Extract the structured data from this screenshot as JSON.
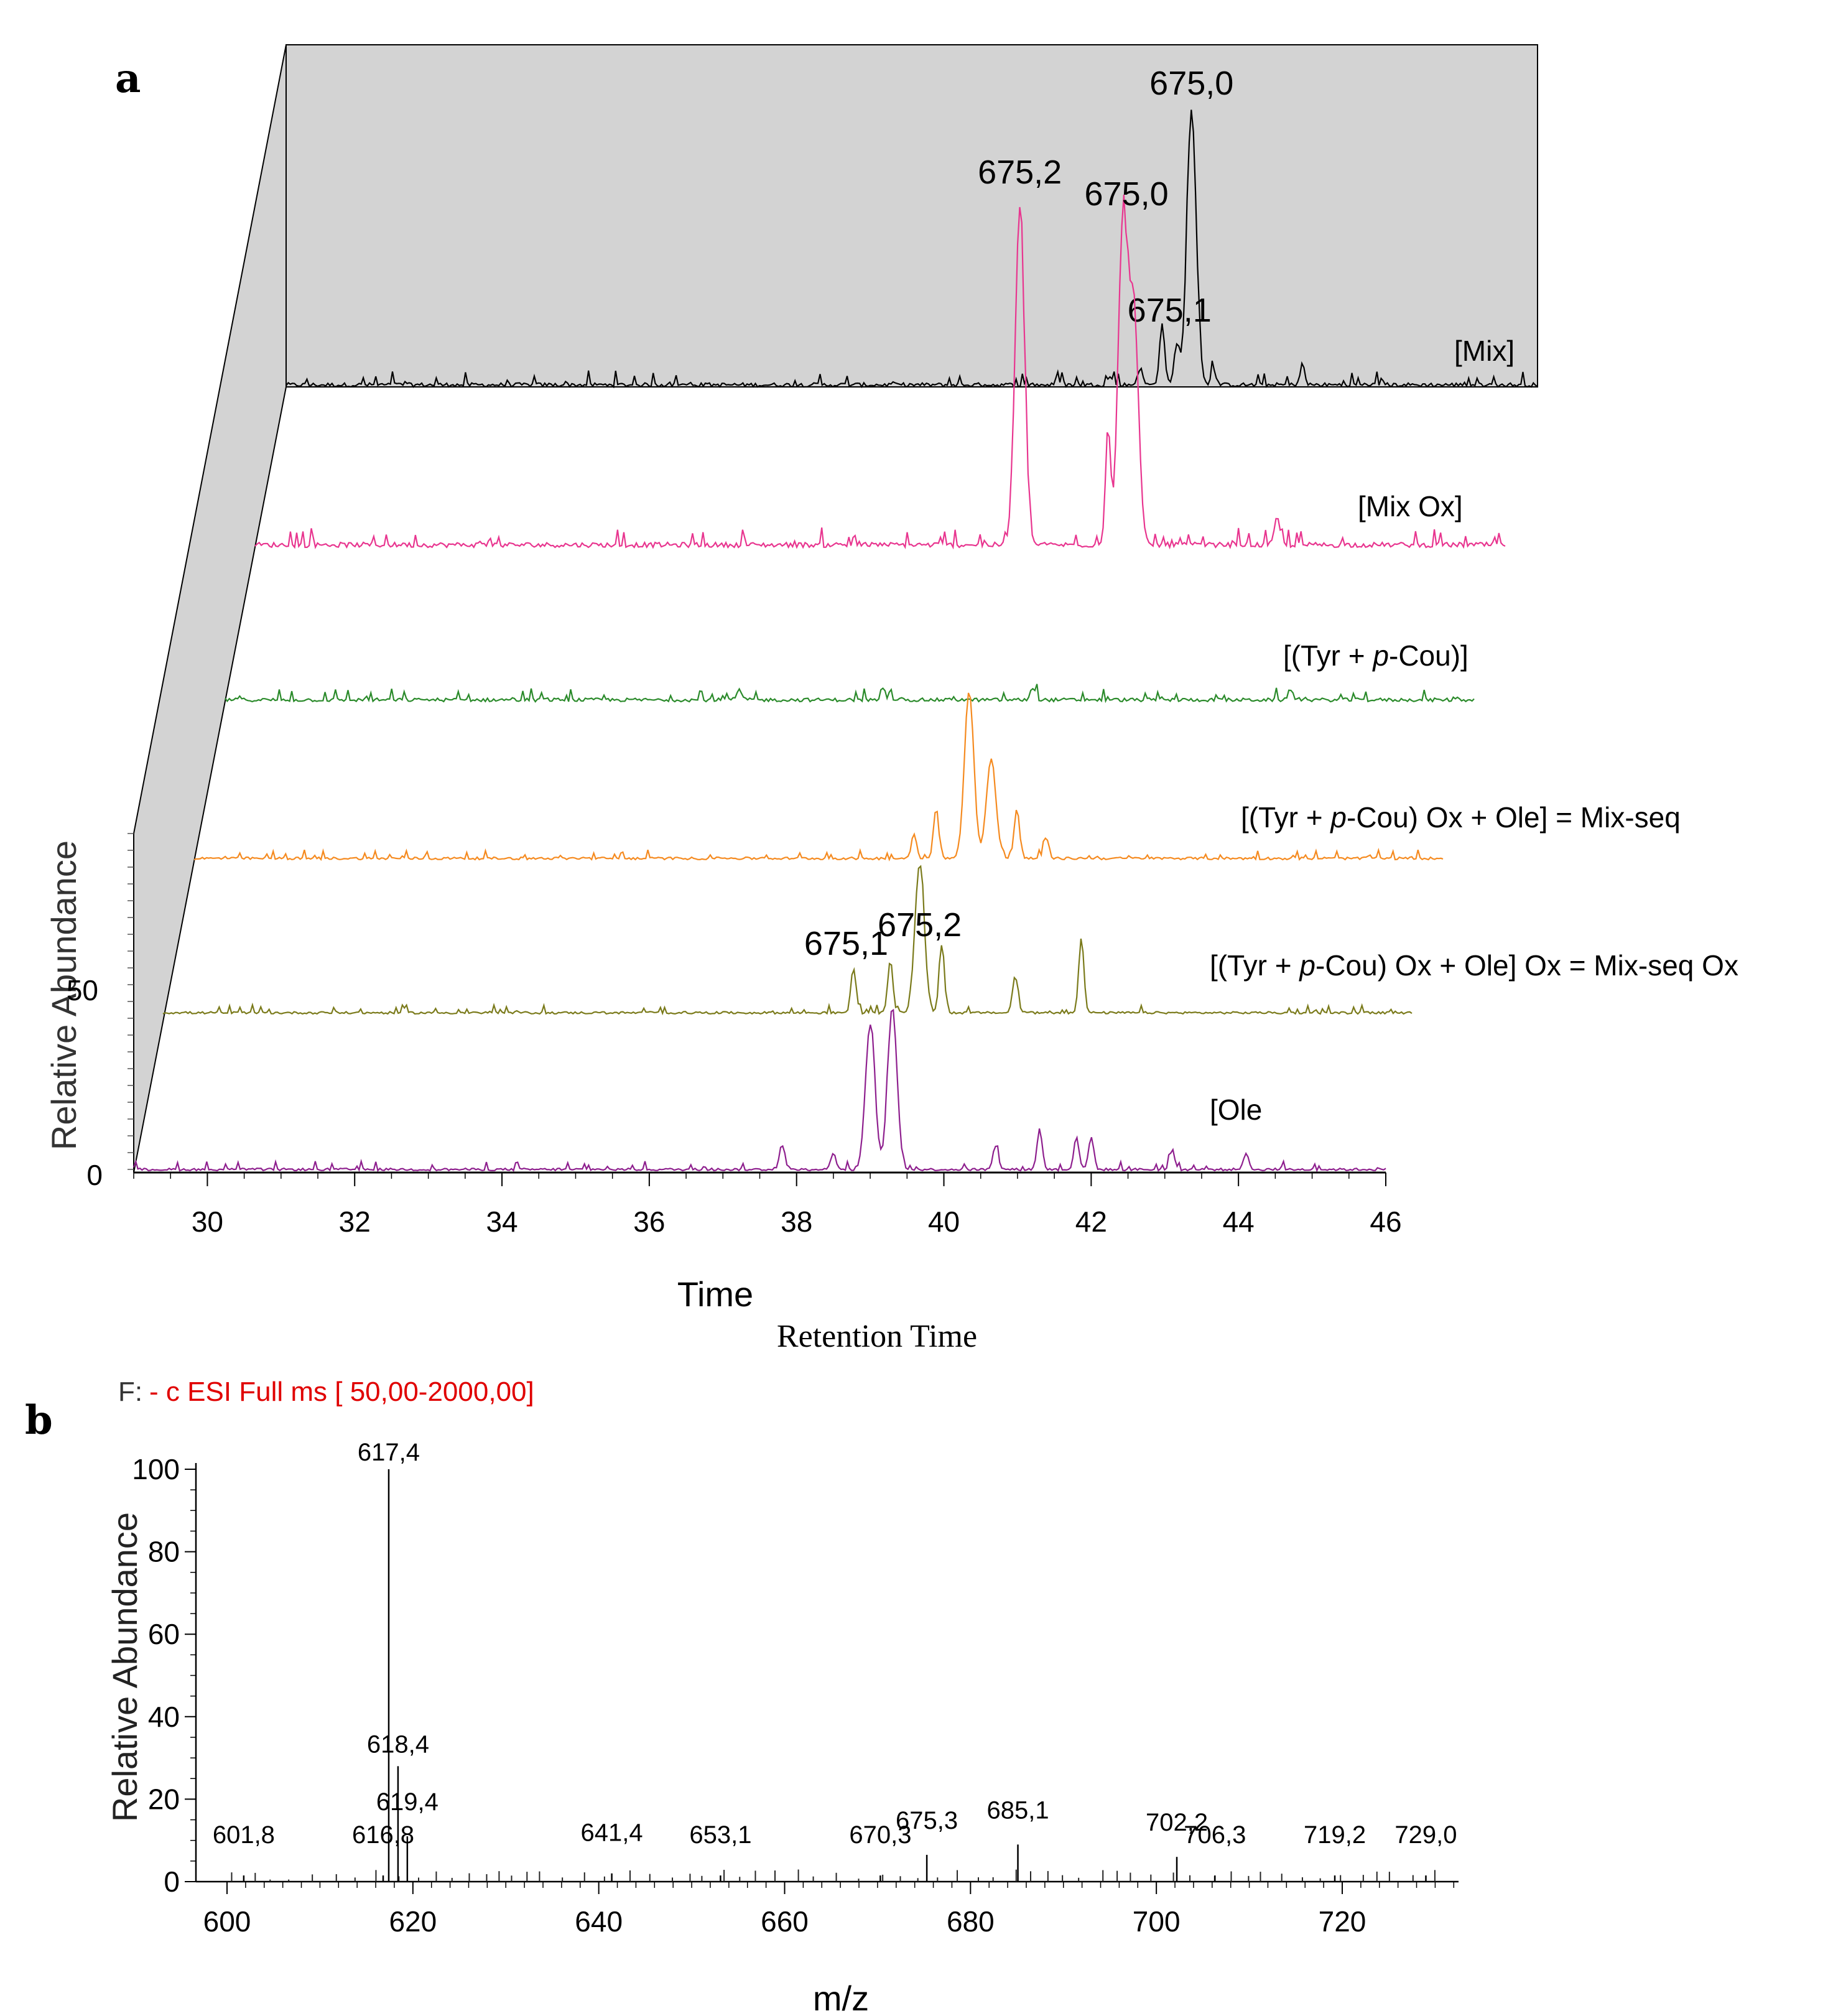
{
  "chart_data": [
    {
      "panel": "a",
      "type": "line",
      "subtype": "stacked chromatograms (3D offset)",
      "xlabel": "Time",
      "xlabel2": "Retention Time",
      "ylabel": "Relative Abundance",
      "xlim": [
        29,
        46
      ],
      "x_ticks": [
        30,
        32,
        34,
        36,
        38,
        40,
        42,
        44,
        46
      ],
      "y_ticks": [
        0,
        50
      ],
      "series": [
        {
          "name": "[Mix]",
          "color": "#000000",
          "peaks": [
            {
              "x": 40.2,
              "h": 0.03
            },
            {
              "x": 40.6,
              "h": 0.06
            },
            {
              "x": 40.9,
              "h": 0.22
            },
            {
              "x": 41.1,
              "h": 0.15
            },
            {
              "x": 41.3,
              "h": 1.0
            },
            {
              "x": 41.6,
              "h": 0.05
            },
            {
              "x": 42.8,
              "h": 0.05
            }
          ],
          "labels": [
            {
              "text": "675,0",
              "x": 41.3
            },
            {
              "text": "675,1",
              "x": 41.0
            }
          ]
        },
        {
          "name": "[Mix Ox]",
          "color": "#e8358f",
          "peaks": [
            {
              "x": 39.4,
              "h": 1.0
            },
            {
              "x": 40.6,
              "h": 0.35
            },
            {
              "x": 40.8,
              "h": 0.95
            },
            {
              "x": 40.95,
              "h": 0.7
            },
            {
              "x": 42.9,
              "h": 0.08
            }
          ],
          "labels": [
            {
              "text": "675,2",
              "x": 39.4
            },
            {
              "text": "675,0",
              "x": 40.85
            }
          ]
        },
        {
          "name": "[(Tyr + ",
          "name_italic": "p",
          "name_end": "-Cou)]",
          "color": "#2a8a2a",
          "peaks": [
            {
              "x": 36.0,
              "h": 0.04
            },
            {
              "x": 40.0,
              "h": 0.05
            },
            {
              "x": 43.5,
              "h": 0.04
            }
          ],
          "labels": []
        },
        {
          "name": "[(Tyr + ",
          "name_italic": "p",
          "name_end": "-Cou) Ox + Ole] = Mix-seq",
          "color": "#f58a1f",
          "peaks": [
            {
              "x": 39.1,
              "h": 0.3
            },
            {
              "x": 39.55,
              "h": 1.0
            },
            {
              "x": 39.85,
              "h": 0.6
            },
            {
              "x": 40.2,
              "h": 0.3
            },
            {
              "x": 38.8,
              "h": 0.15
            },
            {
              "x": 40.6,
              "h": 0.12
            }
          ],
          "labels": []
        },
        {
          "name": "[(Tyr + ",
          "name_italic": "p",
          "name_end": "-Cou) Ox + Ole] Ox = Mix-seq Ox",
          "color": "#7a7a1a",
          "peaks": [
            {
              "x": 38.4,
              "h": 0.3
            },
            {
              "x": 38.9,
              "h": 0.35
            },
            {
              "x": 39.3,
              "h": 1.0
            },
            {
              "x": 39.6,
              "h": 0.45
            },
            {
              "x": 40.6,
              "h": 0.25
            },
            {
              "x": 41.5,
              "h": 0.5
            }
          ],
          "labels": [
            {
              "text": "675,1",
              "x": 38.3
            },
            {
              "text": "675,2",
              "x": 39.3
            }
          ]
        },
        {
          "name": "[Ole",
          "color": "#8e1f8e",
          "peaks": [
            {
              "x": 37.8,
              "h": 0.15
            },
            {
              "x": 38.5,
              "h": 0.1
            },
            {
              "x": 39.0,
              "h": 0.9
            },
            {
              "x": 39.3,
              "h": 1.0
            },
            {
              "x": 40.7,
              "h": 0.15
            },
            {
              "x": 41.3,
              "h": 0.25
            },
            {
              "x": 41.8,
              "h": 0.2
            },
            {
              "x": 42.0,
              "h": 0.2
            },
            {
              "x": 43.1,
              "h": 0.12
            },
            {
              "x": 44.1,
              "h": 0.1
            }
          ]
        }
      ]
    },
    {
      "panel": "b",
      "type": "bar",
      "subtype": "mass spectrum (stick)",
      "title_prefix": "F:",
      "title": "- c ESI Full ms [ 50,00-2000,00]",
      "xlabel": "m/z",
      "ylabel": "Relative Abundance",
      "xlim": [
        599,
        732
      ],
      "ylim": [
        0,
        100
      ],
      "x_ticks": [
        600,
        620,
        640,
        660,
        680,
        700,
        720
      ],
      "y_ticks": [
        0,
        20,
        40,
        60,
        80,
        100
      ],
      "peaks": [
        {
          "mz": 617.4,
          "value": 100,
          "label": "617,4"
        },
        {
          "mz": 618.4,
          "value": 28,
          "label": "618,4"
        },
        {
          "mz": 619.4,
          "value": 11,
          "label": "619,4"
        },
        {
          "mz": 601.8,
          "value": 1.5,
          "label": "601,8"
        },
        {
          "mz": 616.8,
          "value": 1.5,
          "label": "616,8"
        },
        {
          "mz": 641.4,
          "value": 2,
          "label": "641,4"
        },
        {
          "mz": 653.1,
          "value": 1.5,
          "label": "653,1"
        },
        {
          "mz": 670.3,
          "value": 1.5,
          "label": "670,3"
        },
        {
          "mz": 675.3,
          "value": 6.5,
          "label": "675,3"
        },
        {
          "mz": 685.1,
          "value": 9,
          "label": "685,1"
        },
        {
          "mz": 702.2,
          "value": 6,
          "label": "702,2"
        },
        {
          "mz": 706.3,
          "value": 1.5,
          "label": "706,3"
        },
        {
          "mz": 719.2,
          "value": 1.5,
          "label": "719,2"
        },
        {
          "mz": 729.0,
          "value": 1.5,
          "label": "729,0"
        }
      ]
    }
  ],
  "colors": {
    "background_plane": "#d3d3d3",
    "axis": "#000000",
    "title_red": "#e00000",
    "label_green": "#2fb34a"
  }
}
